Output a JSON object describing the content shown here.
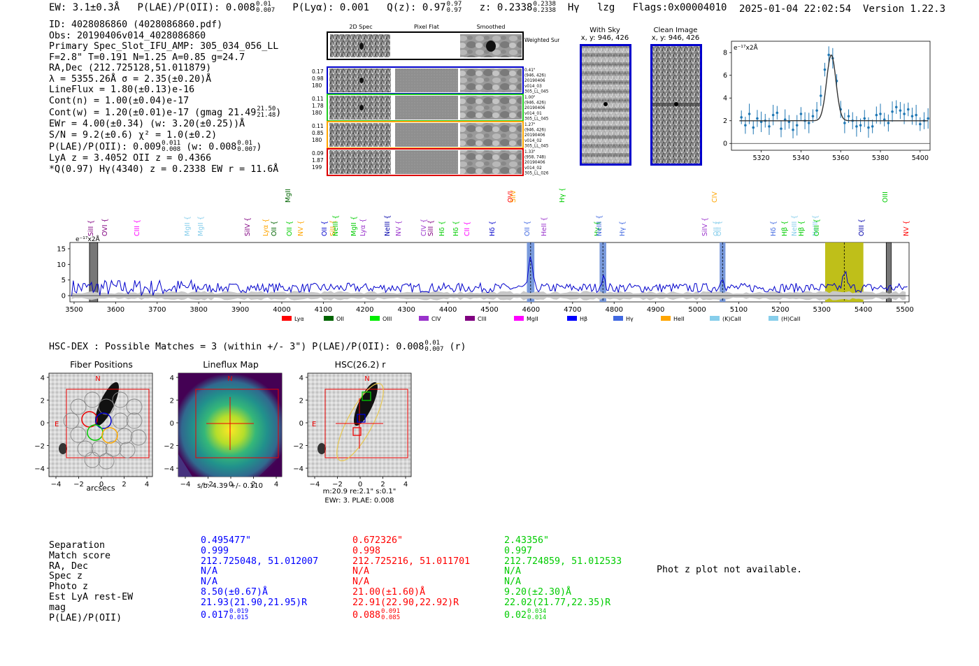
{
  "header": {
    "ew": "EW: 3.1±0.3Å",
    "plae_label": "P(LAE)/P(OII): 0.008",
    "plae_up": "0.01",
    "plae_dn": "0.007",
    "plya": "P(Lyα): 0.001",
    "qz_label": "Q(z): 0.97",
    "qz_up": "0.97",
    "qz_dn": "0.97",
    "z_label": "z: 0.2338",
    "z_up": "0.2338",
    "z_dn": "0.2338",
    "line": "Hγ",
    "tags": "lzg",
    "flags": "Flags:0x00004010",
    "timestamp": "2025-01-04 22:02:54",
    "version": "Version 1.22.3"
  },
  "info": {
    "id": "ID: 4028086860 (4028086860.pdf)",
    "obs": "Obs: 20190406v014_4028086860",
    "primary": "Primary Spec_Slot_IFU_AMP: 305_034_056_LL",
    "params": "F=2.8\"  T=0.191  N=1.25  A=0.85  g=24.7",
    "radec": "RA,Dec (212.725128,51.011879)",
    "lambda": "λ = 5355.26Å  σ = 2.35(±0.20)Å",
    "lineflux": "LineFlux = 1.80(±0.13)e-16",
    "contn": "Cont(n) = 1.00(±0.04)e-17",
    "contw": "Cont(w) = 1.20(±0.01)e-17 (gmag 21.49",
    "contw_up": "21.50",
    "contw_dn": "21.48",
    "contw_end": ")",
    "ewr": "EWr = 4.00(±0.34) (w: 3.20(±0.25))Å",
    "sn": "S/N = 9.2(±0.6)  χ² = 1.0(±0.2)",
    "plae": "P(LAE)/P(OII): 0.009",
    "plae_up": "0.011",
    "plae_dn": "0.008",
    "plae_w": "(w: 0.008",
    "plae_w_up": "0.01",
    "plae_w_dn": "0.007",
    "plae_end": ")",
    "lya": "LyA z = 3.4052  OII z = 0.4366",
    "q": "*Q(0.97) Hγ(4340) z = 0.2338  EW r = 11.6Å"
  },
  "cutouts": {
    "col_2d": "2D Spec",
    "col_flat": "Pixel Flat",
    "col_smooth": "Smoothed",
    "weighted": "Weighted Sum",
    "rows": [
      {
        "left1": "0.17",
        "left2": "0.98",
        "left3": "180",
        "r1": "0.41\"",
        "r2": "(946, 426)",
        "r3": "20190406",
        "r4": "v014_03",
        "r5": "305_LL_045",
        "color": "#0000cc"
      },
      {
        "left1": "0.11",
        "left2": "1.78",
        "left3": "180",
        "r1": "1.00\"",
        "r2": "(946, 426)",
        "r3": "20190406",
        "r4": "v014_01",
        "r5": "305_LL_045",
        "color": "#22cc22"
      },
      {
        "left1": "0.11",
        "left2": "0.85",
        "left3": "180",
        "r1": "1.27\"",
        "r2": "(946, 426)",
        "r3": "20190406",
        "r4": "v014_02",
        "r5": "305_LL_045",
        "color": "#ffa500"
      },
      {
        "left1": "0.09",
        "left2": "1.87",
        "left3": "199",
        "r1": "1.33\"",
        "r2": "(958, 748)",
        "r3": "20190406",
        "r4": "v014_02",
        "r5": "305_LL_026",
        "color": "#dd0000"
      }
    ],
    "with_sky": "With Sky",
    "with_sky_xy": "x, y: 946, 426",
    "clean": "Clean Image",
    "clean_xy": "x, y: 946, 426"
  },
  "zoom_plot": {
    "unit": "e⁻¹⁷x2Å",
    "yticks": [
      "0",
      "2",
      "4",
      "6",
      "8"
    ],
    "xticks": [
      "5320",
      "5340",
      "5360",
      "5380",
      "5400"
    ]
  },
  "spectrum": {
    "unit": "e⁻¹⁷x2Å",
    "yticks": [
      "0",
      "5",
      "10",
      "15"
    ],
    "xticks": [
      "3500",
      "3600",
      "3700",
      "3800",
      "3900",
      "4000",
      "4100",
      "4200",
      "4300",
      "4400",
      "4500",
      "4600",
      "4700",
      "4800",
      "4900",
      "5000",
      "5100",
      "5200",
      "5300",
      "5400",
      "5500"
    ],
    "legend": [
      {
        "label": "Lyα",
        "color": "#ff0000"
      },
      {
        "label": "OII",
        "color": "#006400"
      },
      {
        "label": "OIII",
        "color": "#00ee00"
      },
      {
        "label": "CIV",
        "color": "#9932cc"
      },
      {
        "label": "CIII",
        "color": "#800080"
      },
      {
        "label": "MgII",
        "color": "#ff00ff"
      },
      {
        "label": "Hβ",
        "color": "#0000ff"
      },
      {
        "label": "Hγ",
        "color": "#4169e1"
      },
      {
        "label": "HeII",
        "color": "#ffa500"
      },
      {
        "label": "(K)CaII",
        "color": "#87ceeb"
      },
      {
        "label": "(H)CaII",
        "color": "#87ceeb"
      }
    ],
    "line_labels": [
      {
        "t": "SiII",
        "c": "#800080"
      },
      {
        "t": "OVI",
        "c": "#800080"
      },
      {
        "t": "CIII",
        "c": "#ff00ff"
      },
      {
        "t": "MgII",
        "c": "#87ceeb"
      },
      {
        "t": "MgII",
        "c": "#87ceeb"
      },
      {
        "t": "SiIV",
        "c": "#800080"
      },
      {
        "t": "Lyα",
        "c": "#ffa500"
      },
      {
        "t": "OII",
        "c": "#006400"
      },
      {
        "t": "MgII",
        "c": "#006400"
      },
      {
        "t": "OII",
        "c": "#00cc00"
      },
      {
        "t": "NV",
        "c": "#ffa500"
      },
      {
        "t": "OII",
        "c": "#0000cc"
      },
      {
        "t": "SiII",
        "c": "#ffa500"
      },
      {
        "t": "NeIII",
        "c": "#00cc00"
      },
      {
        "t": "MgII",
        "c": "#00cc00"
      },
      {
        "t": "Lyα",
        "c": "#9932cc"
      },
      {
        "t": "NeIII",
        "c": "#0000aa"
      },
      {
        "t": "NV",
        "c": "#9932cc"
      },
      {
        "t": "CIV",
        "c": "#9932cc"
      },
      {
        "t": "SiII",
        "c": "#800080"
      },
      {
        "t": "Hδ",
        "c": "#00cc00"
      },
      {
        "t": "Hδ",
        "c": "#00cc00"
      },
      {
        "t": "CII",
        "c": "#ff00ff"
      },
      {
        "t": "Hδ",
        "c": "#0000cc"
      },
      {
        "t": "OVI",
        "c": "#ff0000"
      },
      {
        "t": "SiIV",
        "c": "#ffa500"
      },
      {
        "t": "OII",
        "c": "#4169e1"
      },
      {
        "t": "HeII",
        "c": "#9932cc"
      },
      {
        "t": "Hγ",
        "c": "#00cc00"
      },
      {
        "t": "Hγ",
        "c": "#00cc00"
      },
      {
        "t": "NeIII",
        "c": "#4169e1"
      },
      {
        "t": "Hγ",
        "c": "#4169e1"
      },
      {
        "t": "SiIV",
        "c": "#9932cc"
      },
      {
        "t": "CIV",
        "c": "#ffa500"
      },
      {
        "t": "OII",
        "c": "#87ceeb"
      },
      {
        "t": "OII",
        "c": "#87ceeb"
      },
      {
        "t": "Hδ",
        "c": "#4169e1"
      },
      {
        "t": "Hβ",
        "c": "#00cc00"
      },
      {
        "t": "NeIII",
        "c": "#87ceeb"
      },
      {
        "t": "Hβ",
        "c": "#00cc00"
      },
      {
        "t": "NeIII",
        "c": "#87ceeb"
      },
      {
        "t": "OIII",
        "c": "#00cc00"
      },
      {
        "t": "OIII",
        "c": "#0000aa"
      },
      {
        "t": "OIII",
        "c": "#00cc00"
      },
      {
        "t": "NV",
        "c": "#ff0000"
      },
      {
        "t": "OIII",
        "c": "#0000aa"
      }
    ]
  },
  "hsc": {
    "summary_label": "HSC-DEX : Possible Matches = 3 (within +/- 3\")  P(LAE)/P(OII): 0.008",
    "summary_up": "0.01",
    "summary_dn": "0.007",
    "summary_end": "(r)",
    "panel1_title": "Fiber Positions",
    "panel2_title": "Lineflux Map",
    "panel3_title": "HSC(26.2) r",
    "panel1_xlabel": "arcsecs",
    "panel2_xlabel": "s/b: 4.39 +/- 0.110",
    "panel3_xlabel1": "m:20.9  re:2.1\"  s:0.1\"",
    "panel3_xlabel2": "EWr: 3. PLAE: 0.008",
    "n": "N",
    "e": "E",
    "ticks": [
      "4",
      "2",
      "0",
      "−2",
      "−4"
    ],
    "xticks": [
      "−4",
      "−2",
      "0",
      "2",
      "4"
    ]
  },
  "table": {
    "labels": [
      "Separation",
      "Match score",
      "RA, Dec",
      "Spec z",
      "Photo z",
      "Est LyA rest-EW",
      "mag",
      "P(LAE)/P(OII)"
    ],
    "col1": {
      "color": "#0000ff",
      "values": [
        "0.495477\"",
        "0.999",
        "212.725048, 51.012007",
        "N/A",
        "N/A",
        "8.50(±0.67)Å",
        "21.93(21.90,21.95)R"
      ],
      "plae": "0.017",
      "up": "0.019",
      "dn": "0.015"
    },
    "col2": {
      "color": "#ff0000",
      "values": [
        "0.672326\"",
        "0.998",
        "212.725216, 51.011701",
        "N/A",
        "N/A",
        "21.00(±1.60)Å",
        "22.91(22.90,22.92)R"
      ],
      "plae": "0.088",
      "up": "0.091",
      "dn": "0.085"
    },
    "col3": {
      "color": "#00cc00",
      "values": [
        "2.43356\"",
        "0.997",
        "212.724859, 51.012533",
        "N/A",
        "N/A",
        "9.20(±2.30)Å",
        "22.02(21.77,22.35)R"
      ],
      "plae": "0.02",
      "up": "0.034",
      "dn": "0.014"
    },
    "phot_z": "Phot z plot not available."
  },
  "chart_data": [
    {
      "type": "scatter",
      "title": "Emission line zoom",
      "ylabel": "e⁻¹⁷x2Å",
      "xlim": [
        5305,
        5405
      ],
      "ylim": [
        -0.6,
        9
      ],
      "x": [
        5310,
        5312,
        5314,
        5316,
        5318,
        5320,
        5322,
        5324,
        5326,
        5328,
        5330,
        5332,
        5334,
        5336,
        5338,
        5340,
        5342,
        5344,
        5346,
        5348,
        5350,
        5352,
        5354,
        5356,
        5358,
        5360,
        5362,
        5364,
        5366,
        5368,
        5370,
        5372,
        5374,
        5376,
        5378,
        5380,
        5382,
        5384,
        5386,
        5388,
        5390,
        5392,
        5394,
        5396,
        5398,
        5400,
        5402,
        5404
      ],
      "y": [
        2.3,
        1.6,
        2.6,
        1.4,
        2.2,
        1.9,
        2.0,
        1.5,
        2.5,
        2.7,
        1.3,
        2.1,
        1.9,
        1.2,
        1.6,
        2.6,
        2.0,
        1.8,
        2.4,
        2.9,
        4.2,
        6.5,
        7.8,
        7.5,
        5.5,
        3.0,
        1.8,
        2.4,
        2.0,
        1.5,
        1.6,
        2.2,
        1.4,
        1.5,
        2.5,
        2.6,
        2.1,
        1.8,
        2.8,
        3.2,
        2.9,
        2.6,
        3.0,
        2.4,
        2.5,
        1.7,
        2.0,
        2.2
      ],
      "fit_continuum": 2.0,
      "fit_peak": 7.8,
      "fit_center": 5355.26,
      "fit_sigma": 2.35,
      "xticks": [
        5320,
        5340,
        5360,
        5380,
        5400
      ],
      "yticks": [
        0,
        2,
        4,
        6,
        8
      ]
    },
    {
      "type": "line",
      "title": "Full spectrum",
      "ylabel": "e⁻¹⁷x2Å",
      "xlim": [
        3490,
        5510
      ],
      "ylim": [
        -2,
        17
      ],
      "xticks": [
        3500,
        3600,
        3700,
        3800,
        3900,
        4000,
        4100,
        4200,
        4300,
        4400,
        4500,
        4600,
        4700,
        4800,
        4900,
        5000,
        5100,
        5200,
        5300,
        5400,
        5500
      ],
      "yticks": [
        0,
        5,
        10,
        15
      ],
      "baseline": 2.5,
      "peaks": [
        {
          "x": 4599,
          "height": 10.5
        },
        {
          "x": 4773,
          "height": 3.5
        },
        {
          "x": 5061,
          "height": 4.0
        },
        {
          "x": 5355,
          "height": 5.5
        }
      ],
      "highlight_bands": [
        {
          "from": 5308,
          "to": 5400,
          "color": "#b8b800"
        },
        {
          "from": 4590,
          "to": 4608,
          "color": "#6a8fd8"
        },
        {
          "from": 4765,
          "to": 4781,
          "color": "#6a8fd8"
        },
        {
          "from": 5054,
          "to": 5068,
          "color": "#6a8fd8"
        }
      ],
      "masked_bands": [
        {
          "from": 3537,
          "to": 3557
        },
        {
          "from": 5455,
          "to": 5467
        }
      ]
    }
  ]
}
